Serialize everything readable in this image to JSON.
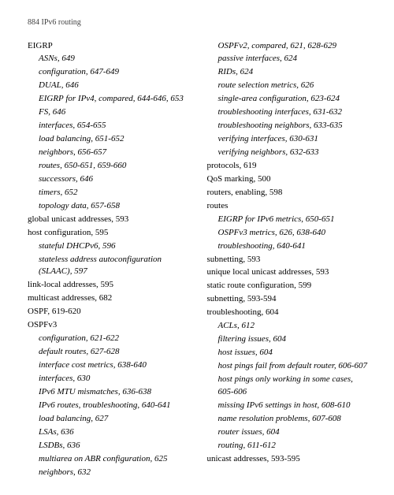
{
  "header": "884   IPv6 routing",
  "left": [
    {
      "lvl": 0,
      "it": false,
      "t": "EIGRP"
    },
    {
      "lvl": 1,
      "it": true,
      "t": "ASNs, 649"
    },
    {
      "lvl": 1,
      "it": true,
      "t": "configuration, 647-649"
    },
    {
      "lvl": 1,
      "it": true,
      "t": "DUAL, 646"
    },
    {
      "lvl": 1,
      "it": true,
      "t": "EIGRP for IPv4, compared, 644-646, 653"
    },
    {
      "lvl": 1,
      "it": true,
      "t": "FS, 646"
    },
    {
      "lvl": 1,
      "it": true,
      "t": "interfaces, 654-655"
    },
    {
      "lvl": 1,
      "it": true,
      "t": "load balancing, 651-652"
    },
    {
      "lvl": 1,
      "it": true,
      "t": "neighbors, 656-657"
    },
    {
      "lvl": 1,
      "it": true,
      "t": "routes, 650-651, 659-660"
    },
    {
      "lvl": 1,
      "it": true,
      "t": "successors, 646"
    },
    {
      "lvl": 1,
      "it": true,
      "t": "timers, 652"
    },
    {
      "lvl": 1,
      "it": true,
      "t": "topology data, 657-658"
    },
    {
      "lvl": 0,
      "it": false,
      "t": "global unicast addresses, 593"
    },
    {
      "lvl": 0,
      "it": false,
      "t": "host configuration, 595"
    },
    {
      "lvl": 1,
      "it": true,
      "t": "stateful DHCPv6, 596"
    },
    {
      "lvl": 1,
      "it": true,
      "t": "stateless address autoconfiguration (SLAAC), 597"
    },
    {
      "lvl": 0,
      "it": false,
      "t": "link-local addresses, 595"
    },
    {
      "lvl": 0,
      "it": false,
      "t": "multicast addresses, 682"
    },
    {
      "lvl": 0,
      "it": false,
      "t": "OSPF, 619-620"
    },
    {
      "lvl": 0,
      "it": false,
      "t": "OSPFv3"
    },
    {
      "lvl": 1,
      "it": true,
      "t": "configuration, 621-622"
    },
    {
      "lvl": 1,
      "it": true,
      "t": "default routes, 627-628"
    },
    {
      "lvl": 1,
      "it": true,
      "t": "interface cost metrics, 638-640"
    },
    {
      "lvl": 1,
      "it": true,
      "t": "interfaces, 630"
    },
    {
      "lvl": 1,
      "it": true,
      "t": "IPv6 MTU mismatches, 636-638"
    },
    {
      "lvl": 1,
      "it": true,
      "t": "IPv6 routes, troubleshooting, 640-641"
    },
    {
      "lvl": 1,
      "it": true,
      "t": "load balancing, 627"
    },
    {
      "lvl": 1,
      "it": true,
      "t": "LSAs, 636"
    },
    {
      "lvl": 1,
      "it": true,
      "t": "LSDBs, 636"
    },
    {
      "lvl": 1,
      "it": true,
      "t": "multiarea on ABR configuration, 625"
    },
    {
      "lvl": 1,
      "it": true,
      "t": "neighbors, 632"
    }
  ],
  "right": [
    {
      "lvl": 1,
      "it": true,
      "t": "OSPFv2, compared, 621, 628-629"
    },
    {
      "lvl": 1,
      "it": true,
      "t": "passive interfaces, 624"
    },
    {
      "lvl": 1,
      "it": true,
      "t": "RIDs, 624"
    },
    {
      "lvl": 1,
      "it": true,
      "t": "route selection metrics, 626"
    },
    {
      "lvl": 1,
      "it": true,
      "t": "single-area configuration, 623-624"
    },
    {
      "lvl": 1,
      "it": true,
      "t": "troubleshooting interfaces, 631-632"
    },
    {
      "lvl": 1,
      "it": true,
      "t": "troubleshooting neighbors, 633-635"
    },
    {
      "lvl": 1,
      "it": true,
      "t": "verifying interfaces, 630-631"
    },
    {
      "lvl": 1,
      "it": true,
      "t": "verifying neighbors, 632-633"
    },
    {
      "lvl": 0,
      "it": false,
      "t": "protocols, 619"
    },
    {
      "lvl": 0,
      "it": false,
      "t": "QoS marking, 500"
    },
    {
      "lvl": 0,
      "it": false,
      "t": "routers, enabling, 598"
    },
    {
      "lvl": 0,
      "it": false,
      "t": "routes"
    },
    {
      "lvl": 1,
      "it": true,
      "t": "EIGRP for IPv6 metrics, 650-651"
    },
    {
      "lvl": 1,
      "it": true,
      "t": "OSPFv3 metrics, 626, 638-640"
    },
    {
      "lvl": 1,
      "it": true,
      "t": "troubleshooting, 640-641"
    },
    {
      "lvl": 0,
      "it": false,
      "t": "subnetting, 593"
    },
    {
      "lvl": 0,
      "it": false,
      "t": "unique local unicast addresses, 593"
    },
    {
      "lvl": 0,
      "it": false,
      "t": "static route configuration, 599"
    },
    {
      "lvl": 0,
      "it": false,
      "t": "subnetting, 593-594"
    },
    {
      "lvl": 0,
      "it": false,
      "t": "troubleshooting, 604"
    },
    {
      "lvl": 1,
      "it": true,
      "t": "ACLs, 612"
    },
    {
      "lvl": 1,
      "it": true,
      "t": "filtering issues, 604"
    },
    {
      "lvl": 1,
      "it": true,
      "t": "host issues, 604"
    },
    {
      "lvl": 1,
      "it": true,
      "t": "host pings fail from default router, 606-607"
    },
    {
      "lvl": 1,
      "it": true,
      "t": "host pings only working in some cases, 605-606"
    },
    {
      "lvl": 1,
      "it": true,
      "t": "missing IPv6 settings in host, 608-610"
    },
    {
      "lvl": 1,
      "it": true,
      "t": "name resolution problems, 607-608"
    },
    {
      "lvl": 1,
      "it": true,
      "t": "router issues, 604"
    },
    {
      "lvl": 1,
      "it": true,
      "t": "routing, 611-612"
    },
    {
      "lvl": 0,
      "it": false,
      "t": "unicast addresses, 593-595"
    }
  ]
}
